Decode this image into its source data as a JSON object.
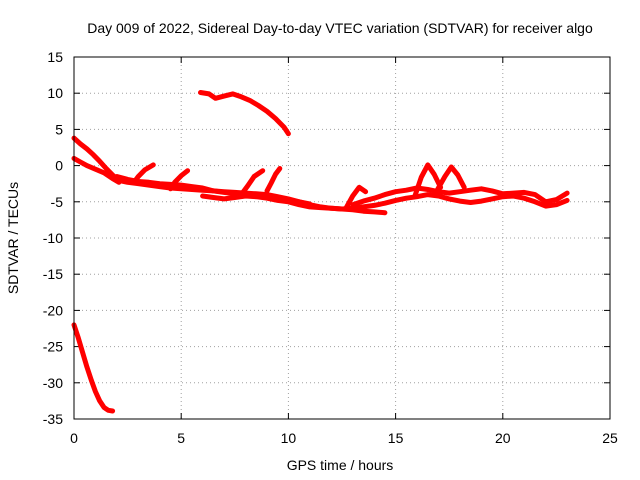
{
  "colors": {
    "series": "#ff0000",
    "grid": "#a0a0a0",
    "axis": "#000000",
    "background": "#ffffff"
  },
  "chart_data": {
    "type": "scatter",
    "title": "Day 009 of 2022, Sidereal Day-to-day VTEC variation (SDTVAR) for receiver algo",
    "xlabel": "GPS time / hours",
    "ylabel": "SDTVAR / TECUs",
    "xlim": [
      0,
      25
    ],
    "ylim": [
      -35,
      15
    ],
    "grid": true,
    "legend": "none",
    "x_ticks": [
      0,
      5,
      10,
      15,
      20,
      25
    ],
    "x_tick_labels": [
      "0",
      "5",
      "10",
      "15",
      "20",
      "25"
    ],
    "y_ticks": [
      15,
      10,
      5,
      0,
      -5,
      -10,
      -15,
      -20,
      -25,
      -30,
      -35
    ],
    "y_tick_labels": [
      "15",
      "10",
      "5",
      "0",
      "-5",
      "-10",
      "-15",
      "-20",
      "-25",
      "-30",
      "-35"
    ],
    "series": [
      {
        "name": "arc-early-high",
        "x": [
          0.0,
          0.3,
          0.6,
          0.9,
          1.2,
          1.5,
          1.8,
          2.0
        ],
        "y": [
          3.8,
          3.0,
          2.3,
          1.5,
          0.6,
          -0.4,
          -1.3,
          -1.8
        ]
      },
      {
        "name": "arc-early-low",
        "x": [
          0.0,
          0.3,
          0.6,
          1.0,
          1.4,
          1.8,
          2.1
        ],
        "y": [
          1.0,
          0.5,
          0.0,
          -0.5,
          -1.0,
          -1.8,
          -2.3
        ]
      },
      {
        "name": "arc-main-a",
        "x": [
          2.0,
          2.5,
          3.0,
          3.5,
          4.0,
          4.5,
          5.0,
          5.5,
          6.0,
          6.5,
          7.0,
          7.5,
          8.0,
          8.5,
          9.0,
          9.5,
          10.0,
          10.5,
          11.0,
          11.5,
          12.0,
          12.5,
          13.0,
          13.5,
          14.0,
          14.5
        ],
        "y": [
          -2.0,
          -2.3,
          -2.5,
          -2.7,
          -2.9,
          -3.1,
          -3.2,
          -3.3,
          -3.4,
          -3.5,
          -3.6,
          -3.7,
          -3.8,
          -3.9,
          -4.0,
          -4.3,
          -4.6,
          -5.0,
          -5.4,
          -5.7,
          -5.9,
          -6.0,
          -6.1,
          -6.3,
          -6.4,
          -6.5
        ]
      },
      {
        "name": "arc-main-b",
        "x": [
          2.0,
          2.5,
          3.0,
          3.5,
          4.0,
          4.5,
          5.0,
          5.5,
          6.0,
          6.5,
          7.0,
          7.5,
          8.0,
          8.5,
          9.0,
          9.5,
          10.0,
          10.5,
          11.0
        ],
        "y": [
          -1.5,
          -1.9,
          -2.2,
          -2.3,
          -2.5,
          -2.6,
          -2.7,
          -2.9,
          -3.1,
          -3.5,
          -3.7,
          -3.9,
          -4.0,
          -4.1,
          -4.2,
          -4.4,
          -4.7,
          -5.0,
          -5.3
        ]
      },
      {
        "name": "arc-main-c",
        "x": [
          6.0,
          6.5,
          7.0,
          7.5,
          8.0,
          8.5,
          9.0,
          9.5,
          10.0,
          10.5,
          11.0,
          11.5,
          12.0,
          12.5,
          13.0,
          13.5,
          14.0,
          14.5,
          15.0,
          15.5,
          16.0,
          16.5,
          17.0,
          17.5,
          18.0,
          18.5,
          19.0,
          19.5,
          20.0,
          20.5,
          21.0,
          21.5,
          22.0,
          22.5,
          23.0
        ],
        "y": [
          -4.2,
          -4.4,
          -4.6,
          -4.4,
          -4.2,
          -4.3,
          -4.5,
          -4.8,
          -5.0,
          -5.4,
          -5.7,
          -5.8,
          -5.9,
          -6.0,
          -5.9,
          -5.7,
          -5.5,
          -5.2,
          -4.8,
          -4.5,
          -4.3,
          -4.0,
          -4.2,
          -4.6,
          -4.9,
          -5.1,
          -4.9,
          -4.6,
          -4.3,
          -4.2,
          -4.5,
          -5.0,
          -5.6,
          -5.4,
          -4.8
        ]
      },
      {
        "name": "arc-main-d",
        "x": [
          13.0,
          13.5,
          14.0,
          14.5,
          15.0,
          15.5,
          16.0,
          16.5,
          17.0,
          17.5,
          18.0,
          18.5,
          19.0,
          19.5,
          20.0,
          20.5,
          21.0,
          21.5,
          22.0,
          22.5,
          23.0
        ],
        "y": [
          -5.4,
          -4.9,
          -4.5,
          -4.0,
          -3.6,
          -3.4,
          -3.1,
          -3.3,
          -3.6,
          -3.8,
          -3.6,
          -3.4,
          -3.2,
          -3.5,
          -3.9,
          -3.8,
          -3.7,
          -4.0,
          -5.0,
          -4.7,
          -3.8
        ]
      },
      {
        "name": "arc-mid-steep-1",
        "x": [
          2.8,
          3.0,
          3.3,
          3.7
        ],
        "y": [
          -2.3,
          -1.5,
          -0.6,
          0.1
        ]
      },
      {
        "name": "arc-mid-steep-2",
        "x": [
          4.5,
          4.7,
          5.0,
          5.3
        ],
        "y": [
          -3.2,
          -2.3,
          -1.4,
          -0.7
        ]
      },
      {
        "name": "arc-mid-steep-3",
        "x": [
          7.8,
          8.1,
          8.4,
          8.8
        ],
        "y": [
          -4.0,
          -2.8,
          -1.5,
          -0.7
        ]
      },
      {
        "name": "arc-mid-steep-4",
        "x": [
          9.0,
          9.2,
          9.4,
          9.6
        ],
        "y": [
          -3.5,
          -2.4,
          -1.2,
          -0.4
        ]
      },
      {
        "name": "arc-spike-16",
        "x": [
          15.9,
          16.2,
          16.5,
          16.8,
          17.1
        ],
        "y": [
          -4.2,
          -1.6,
          0.1,
          -1.2,
          -3.0
        ]
      },
      {
        "name": "arc-spike-17",
        "x": [
          16.9,
          17.3,
          17.6,
          17.9,
          18.2
        ],
        "y": [
          -3.6,
          -1.5,
          -0.2,
          -1.3,
          -3.0
        ]
      },
      {
        "name": "arc-spike-13",
        "x": [
          12.7,
          13.0,
          13.3,
          13.6
        ],
        "y": [
          -5.8,
          -4.2,
          -3.0,
          -3.6
        ]
      },
      {
        "name": "arc-high-hump",
        "x": [
          5.9,
          6.3,
          6.6,
          7.0,
          7.4,
          7.8,
          8.2,
          8.6,
          9.0,
          9.4,
          9.8,
          10.0
        ],
        "y": [
          10.1,
          9.9,
          9.3,
          9.6,
          9.9,
          9.5,
          9.0,
          8.3,
          7.5,
          6.5,
          5.3,
          4.4
        ]
      },
      {
        "name": "arc-low-drop",
        "x": [
          0.0,
          0.2,
          0.4,
          0.6,
          0.8,
          1.0,
          1.2,
          1.4,
          1.6,
          1.8
        ],
        "y": [
          -22.0,
          -23.8,
          -25.8,
          -27.8,
          -29.6,
          -31.2,
          -32.5,
          -33.4,
          -33.8,
          -33.9
        ]
      }
    ]
  }
}
